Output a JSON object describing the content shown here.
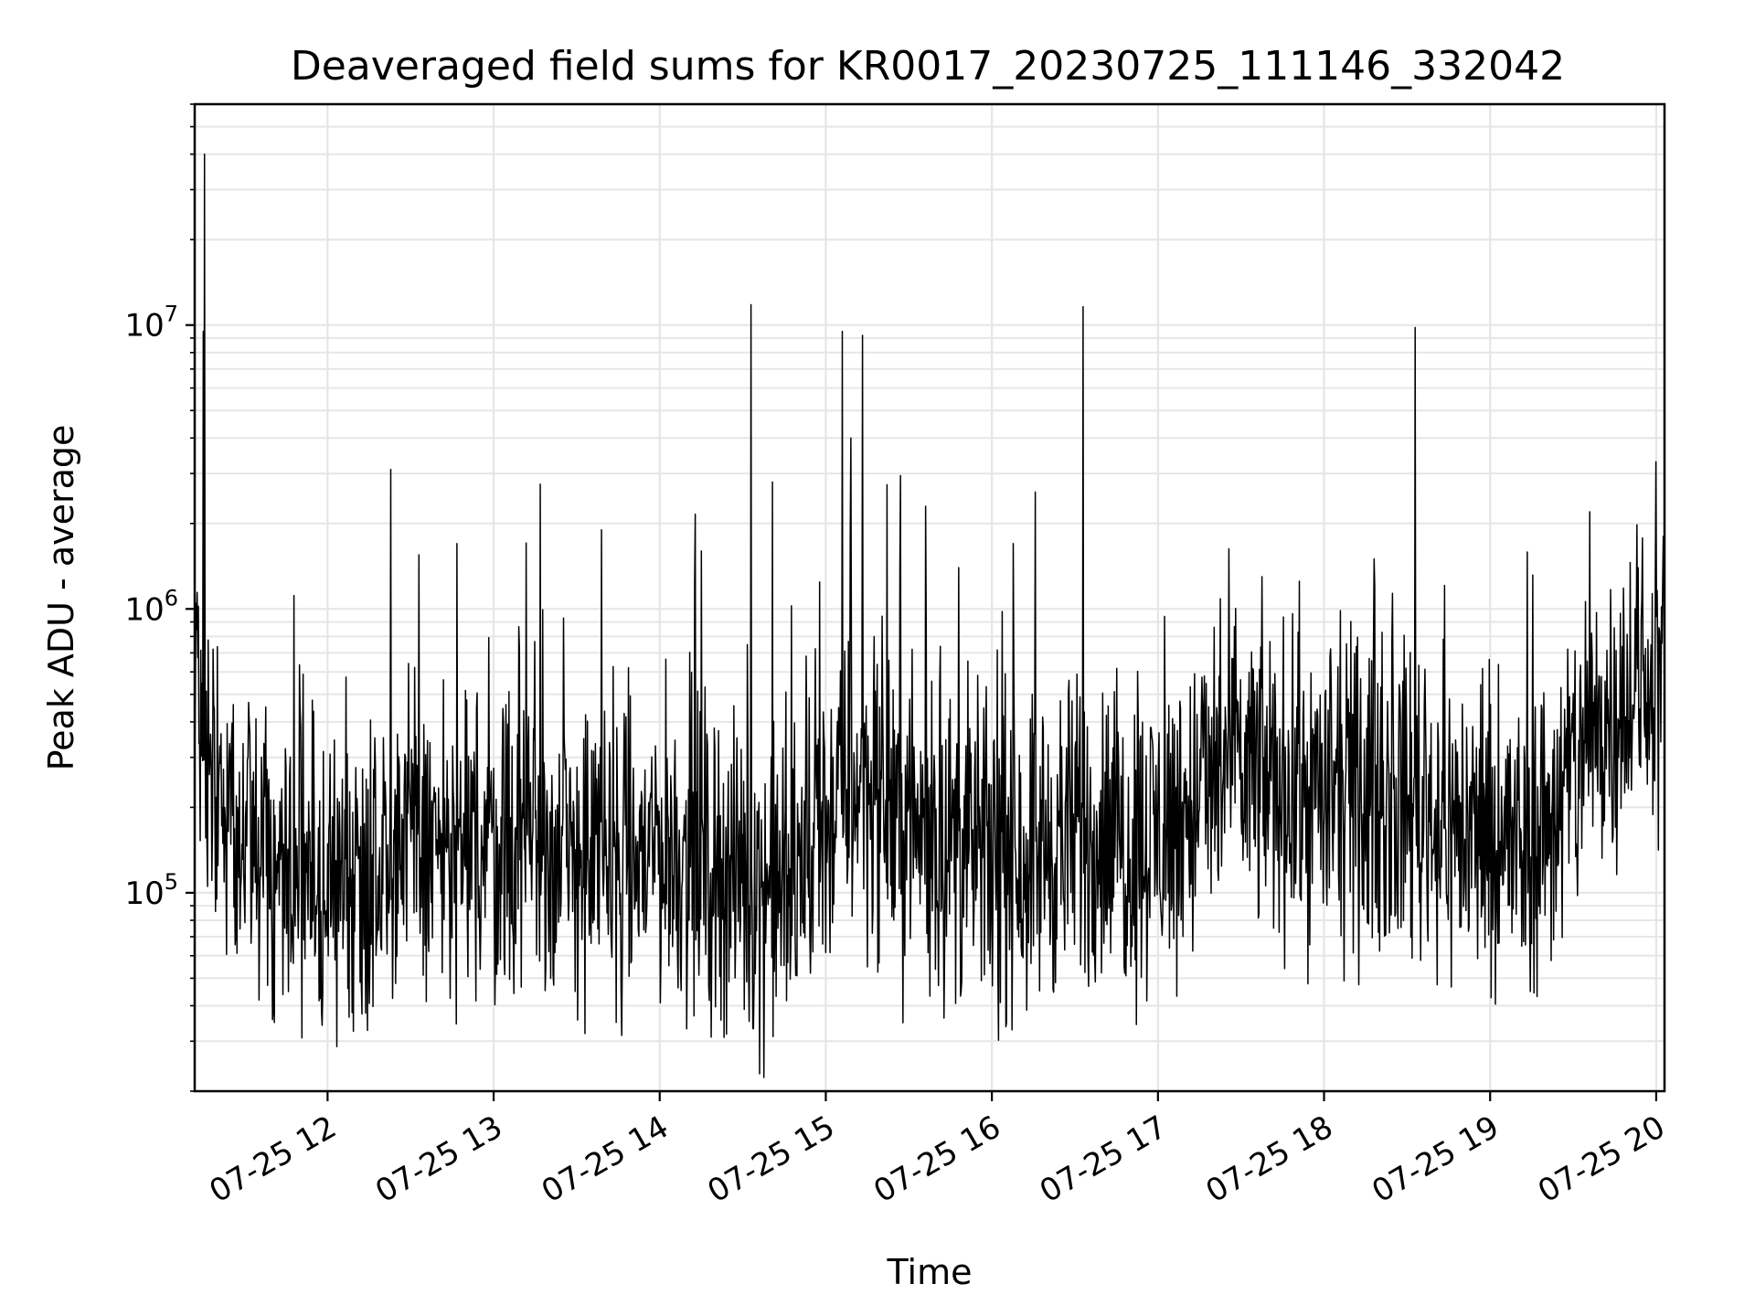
{
  "chart_data": {
    "type": "line",
    "title": "Deaveraged field sums for KR0017_20230725_111146_332042",
    "xlabel": "Time",
    "ylabel": "Peak ADU - average",
    "yscale": "log",
    "ylim": [
      20000,
      60000000
    ],
    "xlim_hours": [
      11.2,
      20.05
    ],
    "grid": true,
    "line_color": "#000000",
    "x_ticks": [
      {
        "label": "07-25 12",
        "value": 12
      },
      {
        "label": "07-25 13",
        "value": 13
      },
      {
        "label": "07-25 14",
        "value": 14
      },
      {
        "label": "07-25 15",
        "value": 15
      },
      {
        "label": "07-25 16",
        "value": 16
      },
      {
        "label": "07-25 17",
        "value": 17
      },
      {
        "label": "07-25 18",
        "value": 18
      },
      {
        "label": "07-25 19",
        "value": 19
      },
      {
        "label": "07-25 20",
        "value": 20
      }
    ],
    "y_ticks": [
      {
        "base": "10",
        "exp": "5",
        "value": 100000
      },
      {
        "base": "10",
        "exp": "6",
        "value": 1000000
      },
      {
        "base": "10",
        "exp": "7",
        "value": 10000000
      }
    ],
    "series": [
      {
        "x": [
          11.2,
          11.4,
          11.6,
          11.8,
          12.0,
          12.2,
          12.4,
          12.6,
          12.8,
          13.0,
          13.2,
          13.4,
          13.6,
          13.8,
          14.0,
          14.2,
          14.4,
          14.6,
          14.8,
          15.0,
          15.2,
          15.4,
          15.6,
          15.8,
          16.0,
          16.2,
          16.4,
          16.6,
          16.8,
          17.0,
          17.2,
          17.4,
          17.6,
          17.8,
          18.0,
          18.2,
          18.4,
          18.6,
          18.8,
          19.0,
          19.2,
          19.4,
          19.6,
          19.8,
          20.05
        ],
        "y": [
          350000,
          180000,
          140000,
          120000,
          100000,
          120000,
          150000,
          150000,
          130000,
          150000,
          160000,
          130000,
          140000,
          120000,
          150000,
          130000,
          120000,
          110000,
          100000,
          180000,
          250000,
          200000,
          160000,
          150000,
          130000,
          140000,
          150000,
          160000,
          150000,
          160000,
          200000,
          280000,
          260000,
          230000,
          220000,
          210000,
          220000,
          200000,
          170000,
          160000,
          140000,
          200000,
          350000,
          500000,
          600000
        ]
      }
    ],
    "spikes": [
      {
        "x": 11.26,
        "y": 40000000
      },
      {
        "x": 11.25,
        "y": 9500000
      },
      {
        "x": 12.38,
        "y": 3100000
      },
      {
        "x": 12.55,
        "y": 1550000
      },
      {
        "x": 12.78,
        "y": 1700000
      },
      {
        "x": 13.28,
        "y": 2750000
      },
      {
        "x": 13.65,
        "y": 1900000
      },
      {
        "x": 14.25,
        "y": 1600000
      },
      {
        "x": 14.55,
        "y": 11800000
      },
      {
        "x": 14.68,
        "y": 2800000
      },
      {
        "x": 15.1,
        "y": 9500000
      },
      {
        "x": 15.15,
        "y": 4000000
      },
      {
        "x": 15.22,
        "y": 9200000
      },
      {
        "x": 15.45,
        "y": 2950000
      },
      {
        "x": 15.6,
        "y": 2300000
      },
      {
        "x": 16.13,
        "y": 1700000
      },
      {
        "x": 16.55,
        "y": 11600000
      },
      {
        "x": 18.55,
        "y": 9800000
      },
      {
        "x": 18.3,
        "y": 1500000
      },
      {
        "x": 19.6,
        "y": 2200000
      },
      {
        "x": 20.0,
        "y": 3300000
      }
    ]
  }
}
